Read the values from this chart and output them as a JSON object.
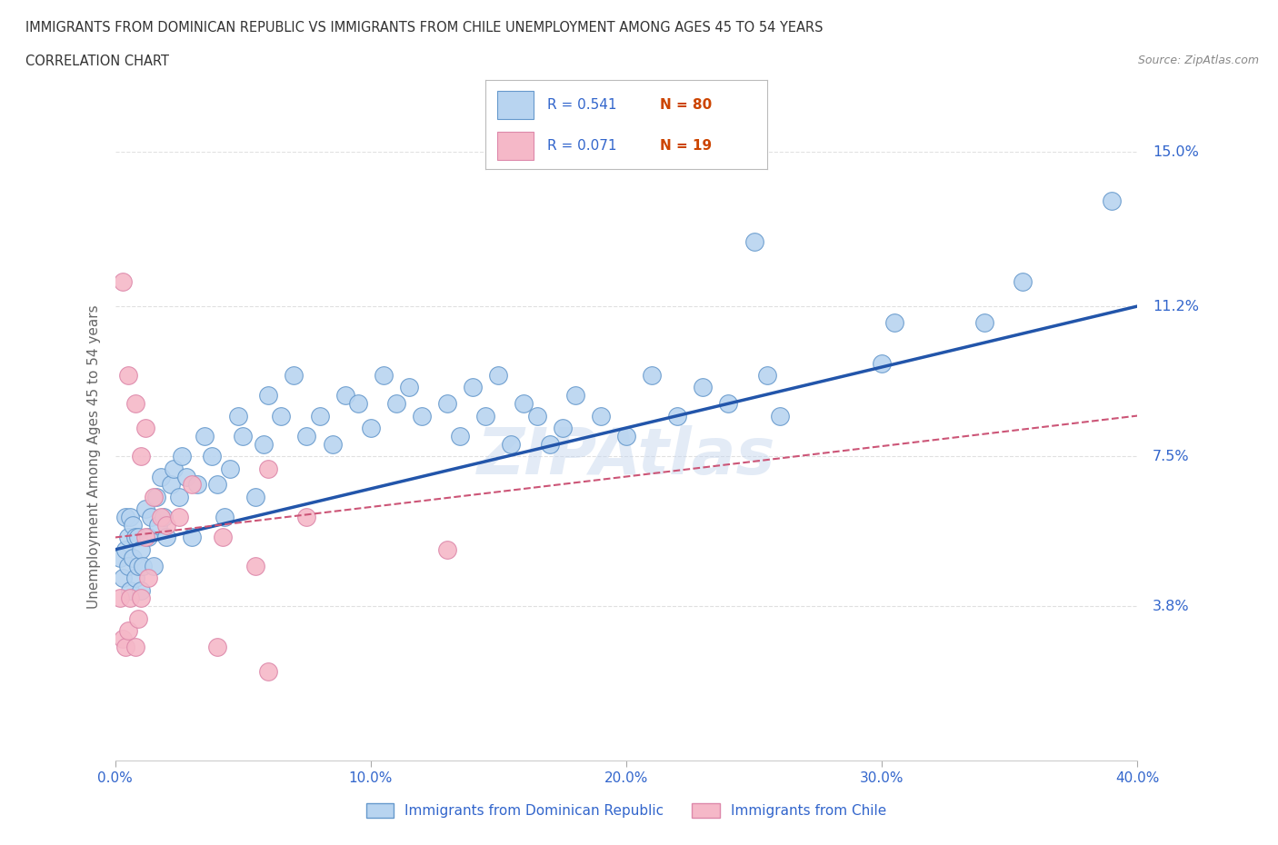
{
  "title_line1": "IMMIGRANTS FROM DOMINICAN REPUBLIC VS IMMIGRANTS FROM CHILE UNEMPLOYMENT AMONG AGES 45 TO 54 YEARS",
  "title_line2": "CORRELATION CHART",
  "source_text": "Source: ZipAtlas.com",
  "watermark": "ZIPAtlas",
  "xlabel_legend": "Immigrants from Dominican Republic",
  "ylabel_legend": "Immigrants from Chile",
  "ylabel": "Unemployment Among Ages 45 to 54 years",
  "xlim": [
    0.0,
    0.4
  ],
  "ylim": [
    0.0,
    0.15
  ],
  "ytick_labels": [
    "3.8%",
    "7.5%",
    "11.2%",
    "15.0%"
  ],
  "ytick_values": [
    0.038,
    0.075,
    0.112,
    0.15
  ],
  "xtick_labels": [
    "0.0%",
    "10.0%",
    "20.0%",
    "30.0%",
    "40.0%"
  ],
  "xtick_values": [
    0.0,
    0.1,
    0.2,
    0.3,
    0.4
  ],
  "series1_color": "#b8d4f0",
  "series1_edge": "#6699cc",
  "series2_color": "#f5b8c8",
  "series2_edge": "#dd88aa",
  "line1_color": "#2255aa",
  "line2_color": "#cc5577",
  "legend_R1": "0.541",
  "legend_N1": "80",
  "legend_R2": "0.071",
  "legend_N2": "19",
  "R_color": "#3366cc",
  "N_color": "#cc4400",
  "title_color": "#333333",
  "source_color": "#888888",
  "tick_color": "#3366cc",
  "ylabel_color": "#666666",
  "background_color": "#ffffff",
  "grid_color": "#cccccc",
  "watermark_color": "#c8d8ee",
  "series1_x": [
    0.002,
    0.003,
    0.004,
    0.004,
    0.005,
    0.005,
    0.006,
    0.006,
    0.007,
    0.007,
    0.008,
    0.008,
    0.009,
    0.009,
    0.01,
    0.01,
    0.011,
    0.012,
    0.013,
    0.014,
    0.015,
    0.016,
    0.017,
    0.018,
    0.019,
    0.02,
    0.022,
    0.023,
    0.025,
    0.026,
    0.028,
    0.03,
    0.032,
    0.035,
    0.038,
    0.04,
    0.043,
    0.045,
    0.048,
    0.05,
    0.055,
    0.058,
    0.06,
    0.065,
    0.07,
    0.075,
    0.08,
    0.085,
    0.09,
    0.095,
    0.1,
    0.105,
    0.11,
    0.115,
    0.12,
    0.13,
    0.135,
    0.14,
    0.145,
    0.15,
    0.155,
    0.16,
    0.165,
    0.17,
    0.175,
    0.18,
    0.19,
    0.2,
    0.21,
    0.22,
    0.23,
    0.24,
    0.25,
    0.255,
    0.26,
    0.3,
    0.305,
    0.34,
    0.355,
    0.39
  ],
  "series1_y": [
    0.05,
    0.045,
    0.052,
    0.06,
    0.048,
    0.055,
    0.042,
    0.06,
    0.05,
    0.058,
    0.045,
    0.055,
    0.048,
    0.055,
    0.042,
    0.052,
    0.048,
    0.062,
    0.055,
    0.06,
    0.048,
    0.065,
    0.058,
    0.07,
    0.06,
    0.055,
    0.068,
    0.072,
    0.065,
    0.075,
    0.07,
    0.055,
    0.068,
    0.08,
    0.075,
    0.068,
    0.06,
    0.072,
    0.085,
    0.08,
    0.065,
    0.078,
    0.09,
    0.085,
    0.095,
    0.08,
    0.085,
    0.078,
    0.09,
    0.088,
    0.082,
    0.095,
    0.088,
    0.092,
    0.085,
    0.088,
    0.08,
    0.092,
    0.085,
    0.095,
    0.078,
    0.088,
    0.085,
    0.078,
    0.082,
    0.09,
    0.085,
    0.08,
    0.095,
    0.085,
    0.092,
    0.088,
    0.128,
    0.095,
    0.085,
    0.098,
    0.108,
    0.108,
    0.118,
    0.138
  ],
  "series2_x": [
    0.002,
    0.003,
    0.004,
    0.005,
    0.006,
    0.008,
    0.009,
    0.01,
    0.012,
    0.013,
    0.015,
    0.018,
    0.02,
    0.03,
    0.042,
    0.055,
    0.06,
    0.075,
    0.13
  ],
  "series2_y": [
    0.04,
    0.03,
    0.028,
    0.032,
    0.04,
    0.028,
    0.035,
    0.04,
    0.055,
    0.045,
    0.065,
    0.06,
    0.058,
    0.068,
    0.055,
    0.048,
    0.072,
    0.06,
    0.052
  ],
  "pink_outliers_x": [
    0.003,
    0.005,
    0.008,
    0.01,
    0.012,
    0.025,
    0.04,
    0.06
  ],
  "pink_outliers_y": [
    0.118,
    0.095,
    0.088,
    0.075,
    0.082,
    0.06,
    0.028,
    0.022
  ],
  "blue_line_x0": 0.0,
  "blue_line_y0": 0.052,
  "blue_line_x1": 0.4,
  "blue_line_y1": 0.112,
  "pink_line_x0": 0.0,
  "pink_line_y0": 0.055,
  "pink_line_x1": 0.4,
  "pink_line_y1": 0.085
}
